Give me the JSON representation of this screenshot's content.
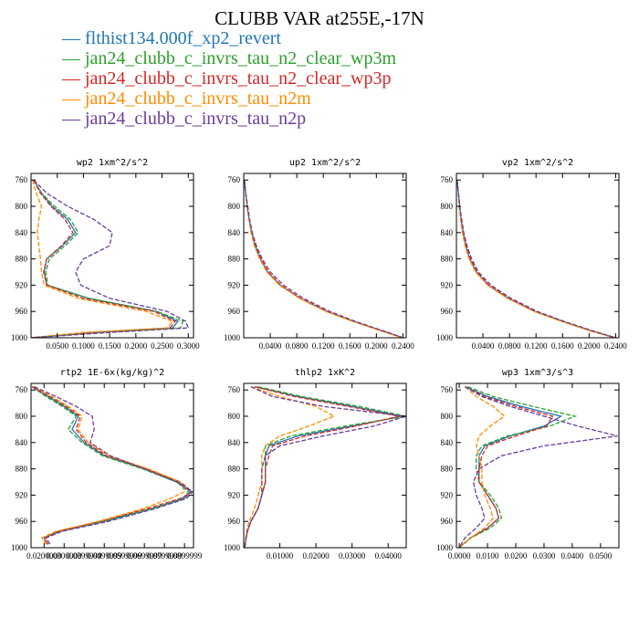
{
  "title": "CLUBB VAR at255E,-17N",
  "colors": [
    "#1f77b4",
    "#2ca02c",
    "#d62728",
    "#ff8c00",
    "#6a3d9a"
  ],
  "legend": [
    {
      "name": "flthist134.000f_xp2_revert"
    },
    {
      "name": "jan24_clubb_c_invrs_tau_n2_clear_wp3m"
    },
    {
      "name": "jan24_clubb_c_invrs_tau_n2_clear_wp3p"
    },
    {
      "name": "jan24_clubb_c_invrs_tau_n2m"
    },
    {
      "name": "jan24_clubb_c_invrs_tau_n2p"
    }
  ],
  "legend_marker": "—",
  "chart_data": [
    {
      "type": "line",
      "title": "wp2  1xm^2/s^2",
      "xlim": [
        0,
        0.31
      ],
      "ylim": [
        1000,
        750
      ],
      "x_ticks": [
        "0.0500",
        "0.1000",
        "0.1500",
        "0.2000",
        "0.2500",
        "0.3000"
      ],
      "x_tick_values": [
        0.05,
        0.1,
        0.15,
        0.2,
        0.25,
        0.3
      ],
      "y_ticks": [
        "760",
        "800",
        "840",
        "880",
        "920",
        "960",
        "1000"
      ],
      "y": [
        760,
        780,
        800,
        820,
        840,
        860,
        880,
        900,
        920,
        940,
        960,
        975,
        985,
        992,
        1000
      ],
      "series": [
        {
          "values": [
            0.005,
            0.02,
            0.04,
            0.07,
            0.085,
            0.06,
            0.03,
            0.025,
            0.03,
            0.11,
            0.24,
            0.28,
            0.27,
            0.12,
            0.0
          ]
        },
        {
          "values": [
            0.005,
            0.02,
            0.045,
            0.075,
            0.09,
            0.065,
            0.035,
            0.028,
            0.032,
            0.11,
            0.24,
            0.29,
            0.285,
            0.13,
            0.0
          ]
        },
        {
          "values": [
            0.005,
            0.018,
            0.038,
            0.065,
            0.08,
            0.058,
            0.03,
            0.024,
            0.03,
            0.1,
            0.235,
            0.275,
            0.265,
            0.12,
            0.0
          ]
        },
        {
          "values": [
            0.003,
            0.01,
            0.02,
            0.015,
            0.012,
            0.015,
            0.018,
            0.02,
            0.025,
            0.09,
            0.22,
            0.27,
            0.26,
            0.1,
            0.0
          ]
        },
        {
          "values": [
            0.005,
            0.03,
            0.07,
            0.12,
            0.155,
            0.15,
            0.1,
            0.085,
            0.095,
            0.15,
            0.26,
            0.295,
            0.3,
            0.15,
            0.0
          ]
        }
      ]
    },
    {
      "type": "line",
      "title": "up2  1xm^2/s^2",
      "xlim": [
        0,
        0.245
      ],
      "ylim": [
        1000,
        750
      ],
      "x_ticks": [
        "0.0400",
        "0.0800",
        "0.1200",
        "0.1600",
        "0.2000",
        "0.2400"
      ],
      "x_tick_values": [
        0.04,
        0.08,
        0.12,
        0.16,
        0.2,
        0.24
      ],
      "y_ticks": [
        "760",
        "800",
        "840",
        "880",
        "920",
        "960",
        "1000"
      ],
      "y": [
        760,
        780,
        800,
        820,
        840,
        860,
        880,
        900,
        920,
        940,
        960,
        975,
        990,
        1000
      ],
      "series": [
        {
          "values": [
            0.001,
            0.003,
            0.005,
            0.008,
            0.012,
            0.017,
            0.025,
            0.036,
            0.055,
            0.085,
            0.125,
            0.165,
            0.21,
            0.24
          ]
        },
        {
          "values": [
            0.001,
            0.003,
            0.005,
            0.008,
            0.012,
            0.017,
            0.025,
            0.036,
            0.055,
            0.085,
            0.125,
            0.165,
            0.21,
            0.24
          ]
        },
        {
          "values": [
            0.001,
            0.003,
            0.005,
            0.008,
            0.012,
            0.018,
            0.026,
            0.037,
            0.056,
            0.086,
            0.126,
            0.166,
            0.21,
            0.24
          ]
        },
        {
          "values": [
            0.001,
            0.003,
            0.005,
            0.008,
            0.011,
            0.016,
            0.024,
            0.035,
            0.054,
            0.084,
            0.124,
            0.164,
            0.208,
            0.238
          ]
        },
        {
          "values": [
            0.001,
            0.003,
            0.006,
            0.009,
            0.013,
            0.019,
            0.028,
            0.04,
            0.06,
            0.09,
            0.13,
            0.168,
            0.212,
            0.24
          ]
        }
      ]
    },
    {
      "type": "line",
      "title": "vp2  1xm^2/s^2",
      "xlim": [
        0,
        0.245
      ],
      "ylim": [
        1000,
        750
      ],
      "x_ticks": [
        "0.0400",
        "0.0800",
        "0.1200",
        "0.1600",
        "0.2000",
        "0.2400"
      ],
      "x_tick_values": [
        0.04,
        0.08,
        0.12,
        0.16,
        0.2,
        0.24
      ],
      "y_ticks": [
        "760",
        "800",
        "840",
        "880",
        "920",
        "960",
        "1000"
      ],
      "y": [
        760,
        780,
        800,
        820,
        840,
        860,
        880,
        900,
        920,
        940,
        960,
        975,
        990,
        1000
      ],
      "series": [
        {
          "values": [
            0.001,
            0.003,
            0.005,
            0.007,
            0.01,
            0.014,
            0.02,
            0.03,
            0.048,
            0.078,
            0.118,
            0.16,
            0.205,
            0.24
          ]
        },
        {
          "values": [
            0.001,
            0.003,
            0.005,
            0.007,
            0.01,
            0.014,
            0.02,
            0.03,
            0.048,
            0.078,
            0.118,
            0.16,
            0.205,
            0.24
          ]
        },
        {
          "values": [
            0.001,
            0.003,
            0.005,
            0.007,
            0.01,
            0.015,
            0.021,
            0.031,
            0.049,
            0.079,
            0.119,
            0.16,
            0.205,
            0.24
          ]
        },
        {
          "values": [
            0.001,
            0.003,
            0.004,
            0.006,
            0.009,
            0.013,
            0.019,
            0.029,
            0.047,
            0.077,
            0.117,
            0.158,
            0.203,
            0.238
          ]
        },
        {
          "values": [
            0.001,
            0.003,
            0.005,
            0.008,
            0.011,
            0.016,
            0.023,
            0.033,
            0.052,
            0.082,
            0.122,
            0.162,
            0.207,
            0.24
          ]
        }
      ]
    },
    {
      "type": "line",
      "title": "rtp2  1E-6x(kg/kg)^2",
      "xlim": [
        0.0135,
        0.0945
      ],
      "ylim": [
        1000,
        750
      ],
      "x_ticks": [
        "0.0200000",
        "0.0300000",
        "0.0399999",
        "0.0499999",
        "0.0599999",
        "0.0699999",
        "0.0799999",
        "0.0899999"
      ],
      "x_tick_values": [
        0.02,
        0.03,
        0.04,
        0.05,
        0.06,
        0.07,
        0.08,
        0.09
      ],
      "y_ticks": [
        "760",
        "800",
        "840",
        "880",
        "920",
        "960",
        "1000"
      ],
      "y": [
        755,
        770,
        785,
        800,
        820,
        840,
        860,
        880,
        900,
        915,
        925,
        940,
        960,
        975,
        985,
        995
      ],
      "series": [
        {
          "values": [
            0.014,
            0.022,
            0.03,
            0.037,
            0.034,
            0.04,
            0.05,
            0.07,
            0.087,
            0.093,
            0.09,
            0.075,
            0.05,
            0.028,
            0.02,
            0.022
          ]
        },
        {
          "values": [
            0.014,
            0.021,
            0.029,
            0.036,
            0.032,
            0.039,
            0.049,
            0.069,
            0.086,
            0.092,
            0.089,
            0.074,
            0.049,
            0.027,
            0.019,
            0.021
          ]
        },
        {
          "values": [
            0.014,
            0.023,
            0.031,
            0.038,
            0.036,
            0.041,
            0.051,
            0.071,
            0.088,
            0.094,
            0.088,
            0.072,
            0.048,
            0.027,
            0.02,
            0.022
          ]
        },
        {
          "values": [
            0.015,
            0.024,
            0.032,
            0.039,
            0.037,
            0.042,
            0.052,
            0.072,
            0.088,
            0.09,
            0.083,
            0.07,
            0.047,
            0.026,
            0.019,
            0.021
          ]
        },
        {
          "values": [
            0.015,
            0.026,
            0.036,
            0.044,
            0.045,
            0.043,
            0.053,
            0.07,
            0.086,
            0.094,
            0.091,
            0.076,
            0.052,
            0.029,
            0.021,
            0.023
          ]
        }
      ]
    },
    {
      "type": "line",
      "title": "thlp2  1xK^2",
      "xlim": [
        0,
        0.045
      ],
      "ylim": [
        1000,
        750
      ],
      "x_ticks": [
        "0.01000",
        "0.02000",
        "0.03000",
        "0.04000"
      ],
      "x_tick_values": [
        0.01,
        0.02,
        0.03,
        0.04
      ],
      "y_ticks": [
        "760",
        "800",
        "840",
        "880",
        "920",
        "960",
        "1000"
      ],
      "y": [
        755,
        770,
        785,
        800,
        815,
        830,
        845,
        860,
        880,
        900,
        920,
        940,
        960,
        975,
        990,
        1000
      ],
      "series": [
        {
          "values": [
            0.003,
            0.015,
            0.03,
            0.044,
            0.03,
            0.015,
            0.007,
            0.006,
            0.006,
            0.006,
            0.005,
            0.004,
            0.002,
            0.001,
            0.0005,
            0.0003
          ]
        },
        {
          "values": [
            0.004,
            0.016,
            0.032,
            0.045,
            0.028,
            0.013,
            0.006,
            0.006,
            0.006,
            0.006,
            0.005,
            0.004,
            0.002,
            0.001,
            0.0005,
            0.0003
          ]
        },
        {
          "values": [
            0.003,
            0.014,
            0.029,
            0.043,
            0.031,
            0.017,
            0.008,
            0.007,
            0.006,
            0.006,
            0.005,
            0.004,
            0.002,
            0.001,
            0.0005,
            0.0003
          ]
        },
        {
          "values": [
            0.002,
            0.01,
            0.02,
            0.025,
            0.018,
            0.01,
            0.006,
            0.005,
            0.005,
            0.005,
            0.004,
            0.003,
            0.0015,
            0.0008,
            0.0004,
            0.0002
          ]
        },
        {
          "values": [
            0.002,
            0.008,
            0.022,
            0.045,
            0.036,
            0.022,
            0.01,
            0.006,
            0.005,
            0.005,
            0.005,
            0.004,
            0.002,
            0.001,
            0.0005,
            0.0003
          ]
        }
      ]
    },
    {
      "type": "line",
      "title": "wp3  1xm^3/s^3",
      "xlim": [
        -0.001,
        0.0565
      ],
      "ylim": [
        1000,
        750
      ],
      "x_ticks": [
        "0.0000",
        "0.0100",
        "0.0200",
        "0.0300",
        "0.0400",
        "0.0500"
      ],
      "x_tick_values": [
        0.0,
        0.01,
        0.02,
        0.03,
        0.04,
        0.05
      ],
      "y_ticks": [
        "760",
        "800",
        "840",
        "880",
        "920",
        "960",
        "1000"
      ],
      "y": [
        755,
        770,
        785,
        800,
        815,
        830,
        845,
        860,
        880,
        900,
        920,
        940,
        955,
        970,
        985,
        1000
      ],
      "series": [
        {
          "values": [
            0.002,
            0.01,
            0.022,
            0.036,
            0.03,
            0.018,
            0.009,
            0.007,
            0.007,
            0.007,
            0.01,
            0.013,
            0.014,
            0.01,
            0.004,
            0.0
          ]
        },
        {
          "values": [
            0.003,
            0.012,
            0.026,
            0.041,
            0.032,
            0.017,
            0.008,
            0.006,
            0.006,
            0.007,
            0.011,
            0.014,
            0.015,
            0.011,
            0.004,
            0.0
          ]
        },
        {
          "values": [
            0.002,
            0.009,
            0.02,
            0.033,
            0.031,
            0.02,
            0.01,
            0.008,
            0.007,
            0.007,
            0.01,
            0.013,
            0.014,
            0.01,
            0.004,
            0.0
          ]
        },
        {
          "values": [
            0.002,
            0.006,
            0.012,
            0.016,
            0.011,
            0.007,
            0.006,
            0.007,
            0.008,
            0.008,
            0.009,
            0.011,
            0.012,
            0.009,
            0.004,
            0.0
          ]
        },
        {
          "values": [
            0.002,
            0.008,
            0.018,
            0.03,
            0.042,
            0.056,
            0.03,
            0.015,
            0.007,
            0.005,
            0.006,
            0.008,
            0.009,
            0.006,
            0.002,
            0.0
          ]
        }
      ]
    }
  ]
}
